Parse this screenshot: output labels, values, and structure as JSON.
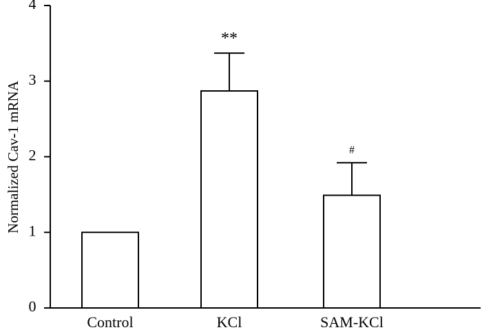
{
  "chart_data": {
    "type": "bar",
    "categories": [
      "Control",
      "KCl",
      "SAM-KCl"
    ],
    "values": [
      1.0,
      2.87,
      1.49
    ],
    "error_upper": [
      0,
      0.5,
      0.43
    ],
    "annotations": [
      "",
      "**",
      "#"
    ],
    "title": "",
    "xlabel": "",
    "ylabel": "Normalized Cav-1 mRNA",
    "ylim": [
      0,
      4
    ],
    "yticks": [
      "0",
      "1",
      "2",
      "3",
      "4"
    ],
    "grid": false,
    "legend": "none"
  }
}
